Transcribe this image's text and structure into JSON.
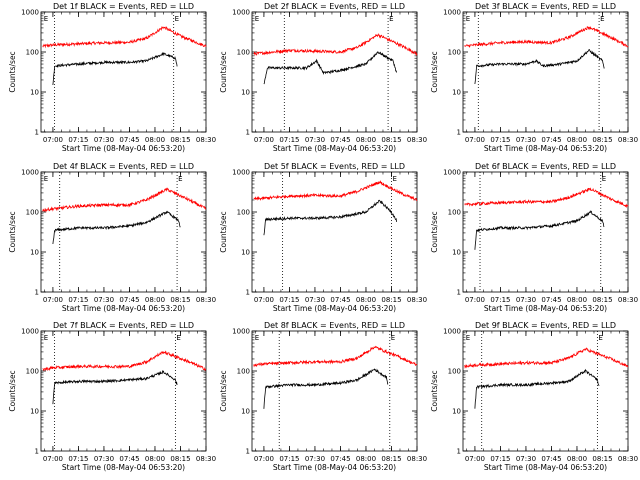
{
  "figure": {
    "xlabel_prefix": "Start Time",
    "start_time": "(08-May-04 06:53:20)"
  },
  "chart_data": [
    {
      "type": "line",
      "title": "Det 1f BLACK = Events, RED = LLD",
      "xlabel": "Start Time (08-May-04 06:53:20)",
      "ylabel": "Counts/sec",
      "yscale": "log",
      "ylim": [
        1,
        1000
      ],
      "xlim": [
        "06:53",
        "08:30"
      ],
      "x_ticks": [
        "07:00",
        "07:15",
        "07:30",
        "07:45",
        "08:00",
        "08:15",
        "08:30"
      ],
      "y_ticks": [
        "1",
        "10",
        "100",
        "1000"
      ],
      "markers": [
        {
          "time": "07:01",
          "label": ""
        },
        {
          "time": "08:11",
          "label": "E"
        },
        {
          "time": "06:54",
          "label": "E"
        }
      ],
      "series": [
        {
          "color": "#ff0000",
          "x": [
            "06:54",
            "07:00",
            "07:15",
            "07:30",
            "07:45",
            "07:55",
            "08:05",
            "08:15",
            "08:30"
          ],
          "values": [
            140,
            150,
            160,
            170,
            175,
            220,
            420,
            250,
            140
          ]
        },
        {
          "color": "#000000",
          "x": [
            "07:00",
            "07:01",
            "07:15",
            "07:30",
            "07:45",
            "07:55",
            "08:05",
            "08:12",
            "08:13"
          ],
          "values": [
            15,
            45,
            50,
            55,
            55,
            60,
            90,
            70,
            45
          ]
        }
      ]
    },
    {
      "type": "line",
      "title": "Det 2f BLACK = Events, RED = LLD",
      "xlabel": "Start Time (08-May-04 06:53:20)",
      "ylabel": "Counts/sec",
      "yscale": "log",
      "ylim": [
        1,
        1000
      ],
      "xlim": [
        "06:53",
        "08:30"
      ],
      "x_ticks": [
        "07:00",
        "07:15",
        "07:30",
        "07:45",
        "08:00",
        "08:15",
        "08:30"
      ],
      "y_ticks": [
        "1",
        "10",
        "100",
        "1000"
      ],
      "markers": [
        {
          "time": "07:12",
          "label": ""
        },
        {
          "time": "08:13",
          "label": "E"
        },
        {
          "time": "06:54",
          "label": "E"
        }
      ],
      "series": [
        {
          "color": "#ff0000",
          "x": [
            "06:54",
            "07:00",
            "07:15",
            "07:30",
            "07:45",
            "07:55",
            "08:07",
            "08:20",
            "08:30"
          ],
          "values": [
            90,
            95,
            110,
            105,
            100,
            130,
            270,
            150,
            90
          ]
        },
        {
          "color": "#000000",
          "x": [
            "07:00",
            "07:02",
            "07:15",
            "07:25",
            "07:31",
            "07:35",
            "07:45",
            "08:00",
            "08:07",
            "08:16",
            "08:18"
          ],
          "values": [
            15,
            40,
            40,
            40,
            60,
            30,
            35,
            50,
            100,
            60,
            30
          ]
        }
      ]
    },
    {
      "type": "line",
      "title": "Det 3f BLACK = Events, RED = LLD",
      "xlabel": "Start Time (08-May-04 06:53:20)",
      "ylabel": "Counts/sec",
      "yscale": "log",
      "ylim": [
        1,
        1000
      ],
      "xlim": [
        "06:53",
        "08:30"
      ],
      "x_ticks": [
        "07:00",
        "07:15",
        "07:30",
        "07:45",
        "08:00",
        "08:15",
        "08:30"
      ],
      "y_ticks": [
        "1",
        "10",
        "100",
        "1000"
      ],
      "markers": [
        {
          "time": "07:02",
          "label": ""
        },
        {
          "time": "08:13",
          "label": "E"
        },
        {
          "time": "06:54",
          "label": "E"
        }
      ],
      "series": [
        {
          "color": "#ff0000",
          "x": [
            "06:54",
            "07:00",
            "07:15",
            "07:30",
            "07:45",
            "07:55",
            "08:07",
            "08:20",
            "08:30"
          ],
          "values": [
            140,
            150,
            170,
            180,
            170,
            230,
            420,
            230,
            140
          ]
        },
        {
          "color": "#000000",
          "x": [
            "07:00",
            "07:01",
            "07:15",
            "07:30",
            "07:36",
            "07:40",
            "07:50",
            "08:00",
            "08:07",
            "08:15",
            "08:16"
          ],
          "values": [
            15,
            45,
            50,
            50,
            60,
            45,
            50,
            60,
            110,
            60,
            40
          ]
        }
      ]
    },
    {
      "type": "line",
      "title": "Det 4f BLACK = Events, RED = LLD",
      "xlabel": "Start Time (08-May-04 06:53:20)",
      "ylabel": "Counts/sec",
      "yscale": "log",
      "ylim": [
        1,
        1000
      ],
      "xlim": [
        "06:53",
        "08:30"
      ],
      "x_ticks": [
        "07:00",
        "07:15",
        "07:30",
        "07:45",
        "08:00",
        "08:15",
        "08:30"
      ],
      "y_ticks": [
        "1",
        "10",
        "100",
        "1000"
      ],
      "markers": [
        {
          "time": "07:04",
          "label": ""
        },
        {
          "time": "08:13",
          "label": "E"
        },
        {
          "time": "06:54",
          "label": "E"
        }
      ],
      "series": [
        {
          "color": "#ff0000",
          "x": [
            "06:54",
            "07:00",
            "07:15",
            "07:30",
            "07:45",
            "07:55",
            "08:07",
            "08:20",
            "08:30"
          ],
          "values": [
            110,
            120,
            140,
            150,
            150,
            200,
            370,
            200,
            120
          ]
        },
        {
          "color": "#000000",
          "x": [
            "07:00",
            "07:01",
            "07:15",
            "07:30",
            "07:45",
            "07:55",
            "08:07",
            "08:14",
            "08:15"
          ],
          "values": [
            15,
            35,
            40,
            40,
            45,
            55,
            100,
            60,
            40
          ]
        }
      ]
    },
    {
      "type": "line",
      "title": "Det 5f BLACK = Events, RED = LLD",
      "xlabel": "Start Time (08-May-04 06:53:20)",
      "ylabel": "Counts/sec",
      "yscale": "log",
      "ylim": [
        1,
        1000
      ],
      "xlim": [
        "06:53",
        "08:30"
      ],
      "x_ticks": [
        "07:00",
        "07:15",
        "07:30",
        "07:45",
        "08:00",
        "08:15",
        "08:30"
      ],
      "y_ticks": [
        "1",
        "10",
        "100",
        "1000"
      ],
      "markers": [
        {
          "time": "07:11",
          "label": ""
        },
        {
          "time": "08:15",
          "label": "E"
        }
      ],
      "series": [
        {
          "color": "#ff0000",
          "x": [
            "06:54",
            "07:00",
            "07:15",
            "07:30",
            "07:45",
            "07:55",
            "08:08",
            "08:20",
            "08:30"
          ],
          "values": [
            210,
            220,
            250,
            260,
            250,
            330,
            560,
            300,
            200
          ]
        },
        {
          "color": "#000000",
          "x": [
            "07:00",
            "07:01",
            "07:15",
            "07:30",
            "07:45",
            "08:00",
            "08:08",
            "08:15",
            "08:18"
          ],
          "values": [
            25,
            65,
            70,
            70,
            75,
            100,
            190,
            100,
            60
          ]
        }
      ]
    },
    {
      "type": "line",
      "title": "Det 6f BLACK = Events, RED = LLD",
      "xlabel": "Start Time (08-May-04 06:53:20)",
      "ylabel": "Counts/sec",
      "yscale": "log",
      "ylim": [
        1,
        1000
      ],
      "xlim": [
        "06:53",
        "08:30"
      ],
      "x_ticks": [
        "07:00",
        "07:15",
        "07:30",
        "07:45",
        "08:00",
        "08:15",
        "08:30"
      ],
      "y_ticks": [
        "1",
        "10",
        "100",
        "1000"
      ],
      "markers": [
        {
          "time": "07:03",
          "label": ""
        },
        {
          "time": "08:14",
          "label": "E"
        }
      ],
      "series": [
        {
          "color": "#ff0000",
          "x": [
            "06:54",
            "07:00",
            "07:15",
            "07:30",
            "07:45",
            "07:55",
            "08:08",
            "08:20",
            "08:30"
          ],
          "values": [
            150,
            160,
            170,
            180,
            180,
            230,
            380,
            210,
            140
          ]
        },
        {
          "color": "#000000",
          "x": [
            "07:00",
            "07:01",
            "07:15",
            "07:30",
            "07:45",
            "08:00",
            "08:08",
            "08:15",
            "08:16"
          ],
          "values": [
            12,
            35,
            40,
            40,
            45,
            60,
            100,
            60,
            40
          ]
        }
      ]
    },
    {
      "type": "line",
      "title": "Det 7f BLACK = Events, RED = LLD",
      "xlabel": "Start Time (08-May-04 06:53:20)",
      "ylabel": "Counts/sec",
      "yscale": "log",
      "ylim": [
        1,
        1000
      ],
      "xlim": [
        "06:53",
        "08:30"
      ],
      "x_ticks": [
        "07:00",
        "07:15",
        "07:30",
        "07:45",
        "08:00",
        "08:15",
        "08:30"
      ],
      "y_ticks": [
        "1",
        "10",
        "100",
        "1000"
      ],
      "markers": [
        {
          "time": "07:01",
          "label": ""
        },
        {
          "time": "08:12",
          "label": "E"
        },
        {
          "time": "06:54",
          "label": "E"
        }
      ],
      "series": [
        {
          "color": "#ff0000",
          "x": [
            "06:54",
            "07:00",
            "07:15",
            "07:30",
            "07:45",
            "07:55",
            "08:05",
            "08:20",
            "08:30"
          ],
          "values": [
            110,
            120,
            130,
            130,
            130,
            170,
            300,
            170,
            110
          ]
        },
        {
          "color": "#000000",
          "x": [
            "07:00",
            "07:01",
            "07:15",
            "07:30",
            "07:45",
            "07:55",
            "08:05",
            "08:12",
            "08:13"
          ],
          "values": [
            15,
            50,
            55,
            55,
            60,
            65,
            95,
            60,
            45
          ]
        }
      ]
    },
    {
      "type": "line",
      "title": "Det 8f BLACK = Events, RED = LLD",
      "xlabel": "Start Time (08-May-04 06:53:20)",
      "ylabel": "Counts/sec",
      "yscale": "log",
      "ylim": [
        1,
        1000
      ],
      "xlim": [
        "06:53",
        "08:30"
      ],
      "x_ticks": [
        "07:00",
        "07:15",
        "07:30",
        "07:45",
        "08:00",
        "08:15",
        "08:30"
      ],
      "y_ticks": [
        "1",
        "10",
        "100",
        "1000"
      ],
      "markers": [
        {
          "time": "07:09",
          "label": ""
        },
        {
          "time": "08:14",
          "label": "E"
        },
        {
          "time": "06:54",
          "label": "E"
        }
      ],
      "series": [
        {
          "color": "#ff0000",
          "x": [
            "06:54",
            "07:00",
            "07:15",
            "07:30",
            "07:45",
            "07:55",
            "08:05",
            "08:20",
            "08:30"
          ],
          "values": [
            140,
            150,
            160,
            170,
            170,
            210,
            400,
            220,
            140
          ]
        },
        {
          "color": "#000000",
          "x": [
            "07:00",
            "07:01",
            "07:15",
            "07:30",
            "07:45",
            "07:55",
            "08:05",
            "08:12",
            "08:13"
          ],
          "values": [
            12,
            40,
            45,
            45,
            50,
            60,
            110,
            70,
            45
          ]
        }
      ]
    },
    {
      "type": "line",
      "title": "Det 9f BLACK = Events, RED = LLD",
      "xlabel": "Start Time (08-May-04 06:53:20)",
      "ylabel": "Counts/sec",
      "yscale": "log",
      "ylim": [
        1,
        1000
      ],
      "xlim": [
        "06:53",
        "08:30"
      ],
      "x_ticks": [
        "07:00",
        "07:15",
        "07:30",
        "07:45",
        "08:00",
        "08:15",
        "08:30"
      ],
      "y_ticks": [
        "1",
        "10",
        "100",
        "1000"
      ],
      "markers": [
        {
          "time": "07:04",
          "label": ""
        },
        {
          "time": "08:12",
          "label": "E"
        },
        {
          "time": "06:54",
          "label": "E"
        }
      ],
      "series": [
        {
          "color": "#ff0000",
          "x": [
            "06:54",
            "07:00",
            "07:15",
            "07:30",
            "07:45",
            "07:55",
            "08:05",
            "08:20",
            "08:30"
          ],
          "values": [
            130,
            140,
            150,
            160,
            160,
            210,
            350,
            200,
            130
          ]
        },
        {
          "color": "#000000",
          "x": [
            "07:00",
            "07:01",
            "07:15",
            "07:30",
            "07:45",
            "07:55",
            "08:05",
            "08:12",
            "08:13"
          ],
          "values": [
            12,
            40,
            45,
            45,
            50,
            55,
            100,
            60,
            40
          ]
        }
      ]
    }
  ]
}
